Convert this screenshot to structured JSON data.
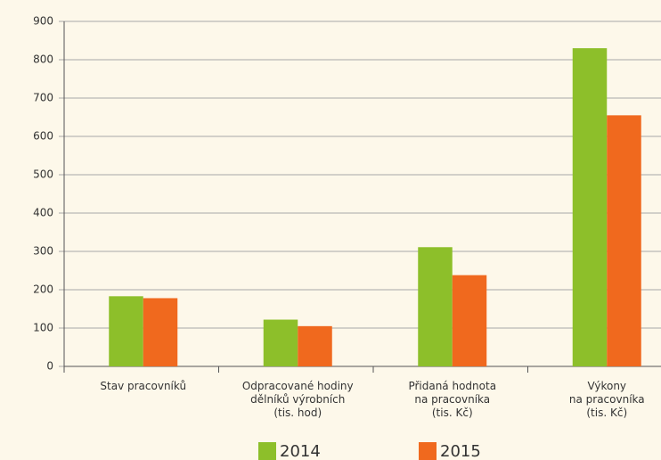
{
  "chart_data": {
    "type": "bar",
    "categories": [
      [
        "Stav pracovníků"
      ],
      [
        "Odpracované hodiny",
        "dělníků výrobních",
        "(tis. hod)"
      ],
      [
        "Přidaná hodnota",
        "na pracovníka",
        "(tis. Kč)"
      ],
      [
        "Výkony",
        "na pracovníka",
        "(tis. Kč)"
      ]
    ],
    "series": [
      {
        "name": "2014",
        "color": "#8dbf2a",
        "values": [
          183,
          122,
          311,
          830
        ]
      },
      {
        "name": "2015",
        "color": "#f0691e",
        "values": [
          178,
          105,
          238,
          655
        ]
      }
    ],
    "ylim": [
      0,
      900
    ],
    "yticks": [
      0,
      100,
      200,
      300,
      400,
      500,
      600,
      700,
      800,
      900
    ],
    "grid": true,
    "legend": "bottom"
  }
}
